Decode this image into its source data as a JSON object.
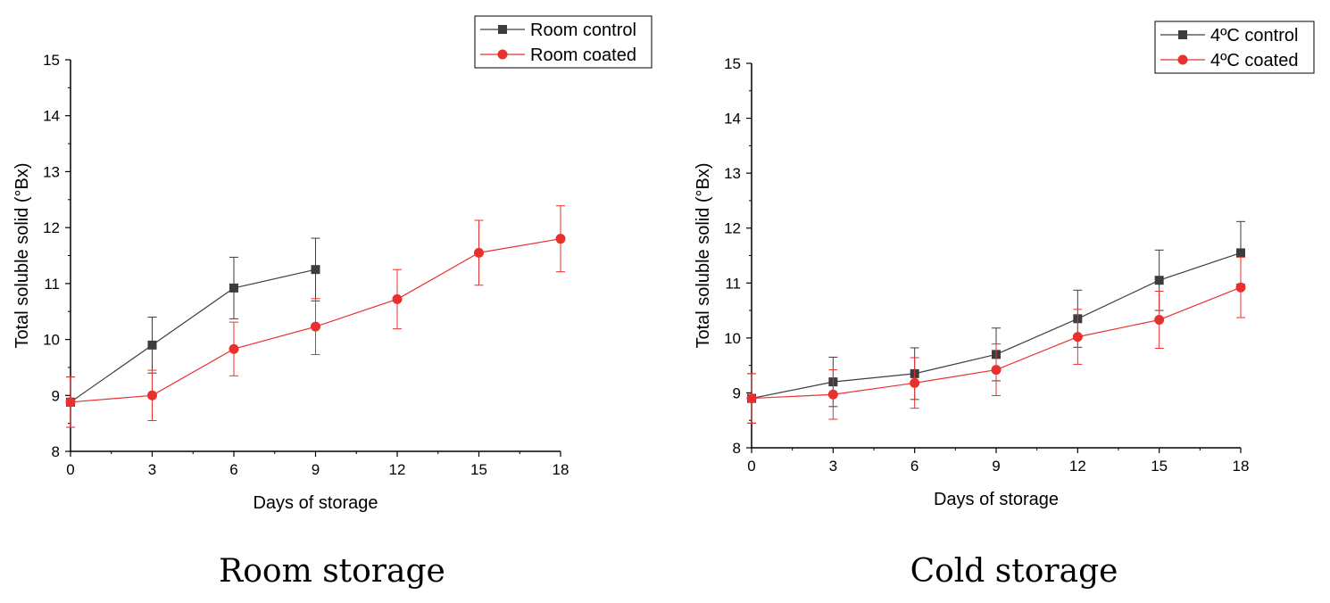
{
  "figure": {
    "panels": [
      "Room storage",
      "Cold storage"
    ]
  },
  "colors": {
    "control": "#3d3d3d",
    "coated": "#e8312f",
    "axis": "#000000"
  },
  "chart_data": [
    {
      "type": "line",
      "caption": "Room storage",
      "xlabel": "Days of storage",
      "ylabel": "Total soluble solid (°Bx)",
      "xlim": [
        0,
        18
      ],
      "ylim": [
        8,
        15
      ],
      "xticks": [
        0,
        3,
        6,
        9,
        12,
        15,
        18
      ],
      "yticks": [
        8,
        9,
        10,
        11,
        12,
        13,
        14,
        15
      ],
      "legend_position": "top-right",
      "series": [
        {
          "name": "Room control",
          "marker": "square",
          "color": "#3d3d3d",
          "x": [
            0,
            3,
            6,
            9
          ],
          "y": [
            8.88,
            9.9,
            10.92,
            11.25
          ],
          "err": [
            0.45,
            0.5,
            0.55,
            0.56
          ]
        },
        {
          "name": "Room coated",
          "marker": "circle",
          "color": "#e8312f",
          "x": [
            0,
            3,
            6,
            9,
            12,
            15,
            18
          ],
          "y": [
            8.88,
            9.0,
            9.83,
            10.23,
            10.72,
            11.55,
            11.8
          ],
          "err": [
            0.45,
            0.45,
            0.48,
            0.5,
            0.53,
            0.58,
            0.59
          ]
        }
      ]
    },
    {
      "type": "line",
      "caption": "Cold storage",
      "xlabel": "Days of storage",
      "ylabel": "Total soluble solid (°Bx)",
      "xlim": [
        0,
        18
      ],
      "ylim": [
        8,
        15
      ],
      "xticks": [
        0,
        3,
        6,
        9,
        12,
        15,
        18
      ],
      "yticks": [
        8,
        9,
        10,
        11,
        12,
        13,
        14,
        15
      ],
      "legend_position": "top-right",
      "series": [
        {
          "name": "4ºC control",
          "marker": "square",
          "color": "#3d3d3d",
          "x": [
            0,
            3,
            6,
            9,
            12,
            15,
            18
          ],
          "y": [
            8.9,
            9.2,
            9.35,
            9.7,
            10.35,
            11.05,
            11.55
          ],
          "err": [
            0.45,
            0.45,
            0.47,
            0.48,
            0.52,
            0.55,
            0.57
          ]
        },
        {
          "name": "4ºC coated",
          "marker": "circle",
          "color": "#e8312f",
          "x": [
            0,
            3,
            6,
            9,
            12,
            15,
            18
          ],
          "y": [
            8.9,
            8.97,
            9.18,
            9.42,
            10.02,
            10.33,
            10.92
          ],
          "err": [
            0.45,
            0.45,
            0.46,
            0.47,
            0.5,
            0.52,
            0.55
          ]
        }
      ]
    }
  ]
}
